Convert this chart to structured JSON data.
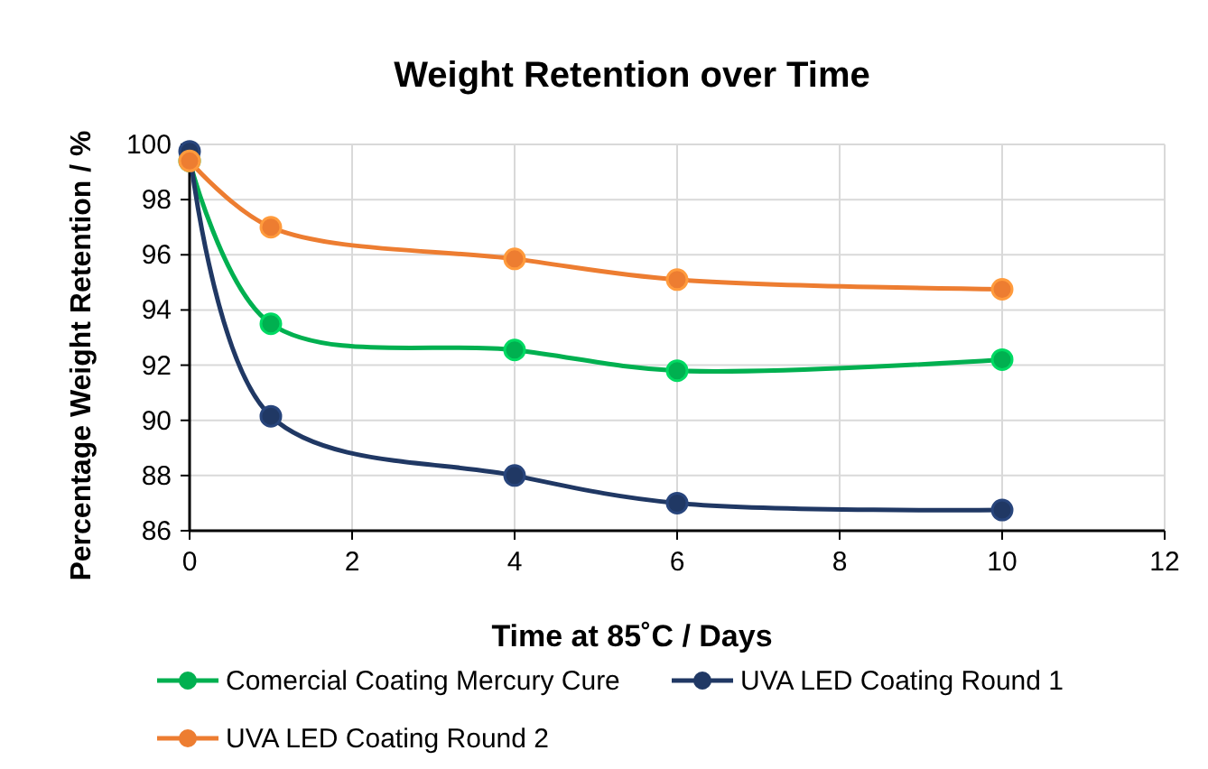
{
  "chart_data": {
    "type": "line",
    "title": "Weight Retention over Time",
    "xlabel": "Time at 85˚C / Days",
    "ylabel": "Percentage Weight Retention / %",
    "x": [
      0,
      1,
      4,
      6,
      10
    ],
    "series": [
      {
        "name": "Comercial Coating Mercury Cure",
        "color": "#00b050",
        "values": [
          99.4,
          93.5,
          92.55,
          91.8,
          92.2
        ]
      },
      {
        "name": "UVA LED Coating Round 1",
        "color": "#203864",
        "values": [
          99.75,
          90.15,
          88.0,
          87.0,
          86.75
        ]
      },
      {
        "name": "UVA LED Coating Round 2",
        "color": "#ed7d31",
        "values": [
          99.4,
          97.0,
          95.85,
          95.1,
          94.75
        ]
      }
    ],
    "xlim": [
      0,
      12
    ],
    "xticks": [
      0,
      2,
      4,
      6,
      8,
      10,
      12
    ],
    "ylim": [
      86,
      100
    ],
    "yticks": [
      86,
      88,
      90,
      92,
      94,
      96,
      98,
      100
    ],
    "grid": true,
    "legend": "bottom",
    "marker": "circle",
    "line_style": "solid"
  }
}
